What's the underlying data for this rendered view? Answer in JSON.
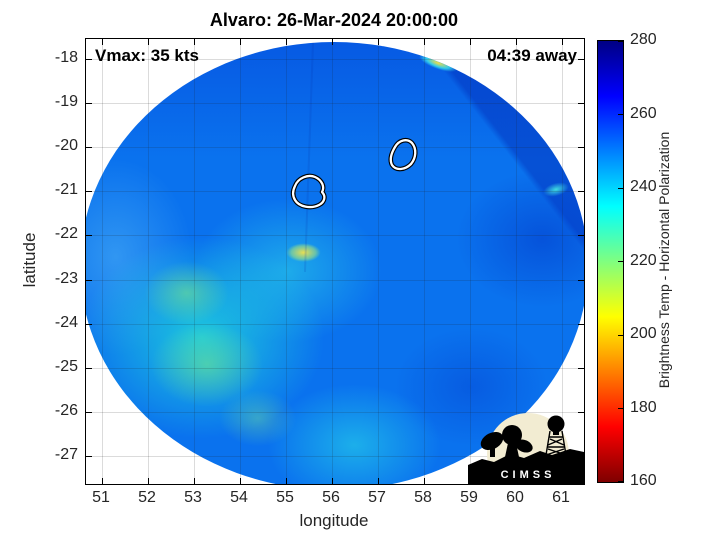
{
  "title": "Alvaro: 26-Mar-2024 20:00:00",
  "annotations": {
    "vmax": "Vmax: 35 kts",
    "time_away": "04:39 away"
  },
  "axes": {
    "xlabel": "longitude",
    "ylabel": "latitude"
  },
  "colorbar": {
    "label": "Brightness Temp - Horizontal Polarization"
  },
  "logo": {
    "text": "CIMSS"
  },
  "chart_data": {
    "type": "heatmap",
    "storm_name": "Alvaro",
    "valid_time": "26-Mar-2024 20:00:00",
    "vmax_kts": 35,
    "time_to_observation": "04:39 away",
    "title": "Alvaro: 26-Mar-2024 20:00:00",
    "xlabel": "longitude",
    "ylabel": "latitude",
    "xlim": [
      50.8,
      61.5
    ],
    "ylim": [
      -27.8,
      -17.6
    ],
    "x_ticks": [
      51,
      52,
      53,
      54,
      55,
      56,
      57,
      58,
      59,
      60,
      61
    ],
    "y_ticks": [
      -18,
      -19,
      -20,
      -21,
      -22,
      -23,
      -24,
      -25,
      -26,
      -27
    ],
    "grid": true,
    "colorbar": {
      "label": "Brightness Temp - Horizontal Polarization",
      "range": [
        160,
        280
      ],
      "ticks": [
        160,
        180,
        200,
        220,
        240,
        260,
        280
      ],
      "colormap": "jet reversed (low=dark red, high=dark navy)",
      "gradient_bottom_to_top": [
        {
          "value": 160,
          "color": "#7f0000"
        },
        {
          "value": 175,
          "color": "#ff0000"
        },
        {
          "value": 205,
          "color": "#ffff00"
        },
        {
          "value": 235,
          "color": "#00ffff"
        },
        {
          "value": 265,
          "color": "#0000ff"
        },
        {
          "value": 280,
          "color": "#000084"
        }
      ]
    },
    "swath": {
      "shape": "circular microwave swath on white background",
      "center_lon": 56.1,
      "center_lat": -22.6,
      "radius_deg": 5.0,
      "background_value_K": 250,
      "background_color": "#0a72ee"
    },
    "features": [
      {
        "region": "north and east sector blue",
        "approx_K": 255,
        "color": "#0857e8"
      },
      {
        "region": "northeast corner beyond straight swath seam",
        "approx_K": 262,
        "color": "#0343ce"
      },
      {
        "region": "center-west cyan band",
        "approx_K": 238,
        "color": "#28c8e8"
      },
      {
        "region": "southwest quadrant cyan",
        "approx_K": 233,
        "color": "#22dcda"
      },
      {
        "region": "southwest green patches",
        "approx_K": 225,
        "color": "#7de787"
      },
      {
        "region": "small warm yellow spot",
        "lon": 55.6,
        "lat": -22.35,
        "approx_K": 208,
        "color": "#f0e24b"
      },
      {
        "region": "yellow-cyan streak on north edge",
        "lon": 58.2,
        "lat": -18.3,
        "approx_K": 205,
        "color": "#ffe23c"
      },
      {
        "region": "cyan bright spot on east edge",
        "lon": 60.9,
        "lat": -20.9,
        "approx_K": 238,
        "color": "#46e8dc"
      },
      {
        "region": "dark blue patches southeast",
        "approx_K": 258,
        "color": "#0550e0"
      }
    ],
    "contours": [
      {
        "lon": 55.55,
        "lat": -21.05,
        "style": "white contour with black casing"
      },
      {
        "lon": 57.5,
        "lat": -20.35,
        "style": "white contour with black casing"
      }
    ]
  }
}
